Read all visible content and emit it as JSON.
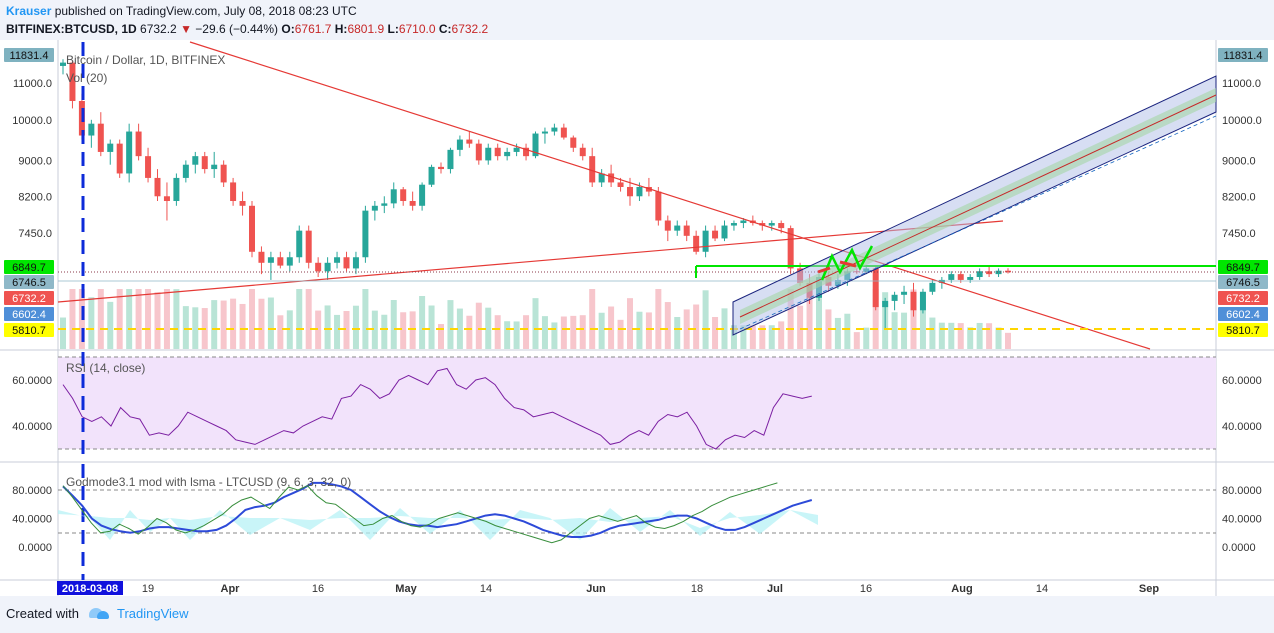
{
  "header": {
    "author": "Krauser",
    "published_text": "published on TradingView.com, July 08, 2018 08:23 UTC",
    "symbol": "BITFINEX:BTCUSD, 1D",
    "last": "6732.2",
    "change": "−29.6 (−0.44%)",
    "o_label": "O:",
    "o": "6761.7",
    "h_label": "H:",
    "h": "6801.9",
    "l_label": "L:",
    "l": "6710.0",
    "c_label": "C:",
    "c": "6732.2"
  },
  "panes": {
    "main_title": "Bitcoin / Dollar, 1D, BITFINEX",
    "vol_title": "Vol (20)",
    "rsi_title": "RSI (14, close)",
    "god_title": "Godmode3.1 mod with lsma - LTCUSD (9, 6, 3, 32, 0)"
  },
  "footer": {
    "created_with": "Created with",
    "brand": "TradingView"
  },
  "chart_data": [
    {
      "type": "candlestick",
      "title": "Bitcoin / Dollar, 1D, BITFINEX",
      "x_ticks": [
        "2018-03-08",
        "19",
        "Apr",
        "16",
        "May",
        "14",
        "Jun",
        "18",
        "Jul",
        "16",
        "Aug",
        "14",
        "Sep"
      ],
      "y_ticks": [
        11000.0,
        10000.0,
        9000.0,
        8200.0,
        7450.0
      ],
      "scale": "log",
      "price_markers": [
        {
          "label": "11831.4",
          "color": "#7fb2c0"
        },
        {
          "label": "6849.7",
          "color": "#00e600"
        },
        {
          "label": "6746.5",
          "color": "#8fb8c8"
        },
        {
          "label": "6732.2",
          "color": "#ef5350"
        },
        {
          "label": "6602.4",
          "color": "#4f8fd8"
        },
        {
          "label": "5810.7",
          "color": "#ffff00"
        }
      ],
      "ohlc_approx": [
        [
          11500,
          11700,
          11250,
          11600
        ],
        [
          11600,
          11650,
          10300,
          10500
        ],
        [
          10500,
          10700,
          9500,
          9600
        ],
        [
          9600,
          10000,
          9300,
          9900
        ],
        [
          9900,
          10200,
          9100,
          9200
        ],
        [
          9200,
          9500,
          8900,
          9400
        ],
        [
          9400,
          9500,
          8600,
          8700
        ],
        [
          8700,
          9900,
          8500,
          9700
        ],
        [
          9700,
          9900,
          9000,
          9100
        ],
        [
          9100,
          9300,
          8500,
          8600
        ],
        [
          8600,
          8800,
          8100,
          8200
        ],
        [
          8200,
          8500,
          7700,
          8100
        ],
        [
          8100,
          8700,
          8000,
          8600
        ],
        [
          8600,
          9000,
          8500,
          8900
        ],
        [
          8900,
          9200,
          8700,
          9100
        ],
        [
          9100,
          9200,
          8700,
          8800
        ],
        [
          8800,
          9200,
          8600,
          8900
        ],
        [
          8900,
          9000,
          8400,
          8500
        ],
        [
          8500,
          8600,
          8000,
          8100
        ],
        [
          8100,
          8300,
          7800,
          8000
        ],
        [
          8000,
          8100,
          7000,
          7100
        ],
        [
          7100,
          7200,
          6700,
          6900
        ],
        [
          6900,
          7100,
          6600,
          7000
        ],
        [
          7000,
          7100,
          6800,
          6850
        ],
        [
          6850,
          7100,
          6750,
          7000
        ],
        [
          7000,
          7600,
          6900,
          7500
        ],
        [
          7500,
          7600,
          6800,
          6900
        ],
        [
          6900,
          7000,
          6650,
          6750
        ],
        [
          6750,
          7000,
          6600,
          6900
        ],
        [
          6900,
          7100,
          6800,
          7000
        ],
        [
          7000,
          7100,
          6750,
          6800
        ],
        [
          6800,
          7100,
          6700,
          7000
        ],
        [
          7000,
          8000,
          6900,
          7900
        ],
        [
          7900,
          8100,
          7700,
          8000
        ],
        [
          8000,
          8200,
          7850,
          8050
        ],
        [
          8050,
          8500,
          7950,
          8350
        ],
        [
          8350,
          8400,
          8000,
          8100
        ],
        [
          8100,
          8300,
          7900,
          8000
        ],
        [
          8000,
          8500,
          7900,
          8450
        ],
        [
          8450,
          8900,
          8400,
          8850
        ],
        [
          8850,
          8950,
          8700,
          8800
        ],
        [
          8800,
          9300,
          8700,
          9250
        ],
        [
          9250,
          9600,
          9100,
          9500
        ],
        [
          9500,
          9700,
          9300,
          9400
        ],
        [
          9400,
          9500,
          8900,
          9000
        ],
        [
          9000,
          9400,
          8900,
          9300
        ],
        [
          9300,
          9400,
          9000,
          9100
        ],
        [
          9100,
          9300,
          9000,
          9200
        ],
        [
          9200,
          9400,
          9100,
          9300
        ],
        [
          9300,
          9400,
          9000,
          9100
        ],
        [
          9100,
          9700,
          9050,
          9650
        ],
        [
          9650,
          9800,
          9400,
          9700
        ],
        [
          9700,
          9900,
          9600,
          9800
        ],
        [
          9800,
          9900,
          9500,
          9550
        ],
        [
          9550,
          9600,
          9200,
          9300
        ],
        [
          9300,
          9400,
          9000,
          9100
        ],
        [
          9100,
          9300,
          8400,
          8500
        ],
        [
          8500,
          8800,
          8400,
          8700
        ],
        [
          8700,
          8900,
          8400,
          8500
        ],
        [
          8500,
          8600,
          8300,
          8400
        ],
        [
          8400,
          8600,
          8000,
          8200
        ],
        [
          8200,
          8500,
          8100,
          8400
        ],
        [
          8400,
          8600,
          8200,
          8300
        ],
        [
          8300,
          8400,
          7600,
          7700
        ],
        [
          7700,
          7800,
          7300,
          7500
        ],
        [
          7500,
          7700,
          7400,
          7600
        ],
        [
          7600,
          7700,
          7300,
          7400
        ],
        [
          7400,
          7500,
          7050,
          7100
        ],
        [
          7100,
          7600,
          7000,
          7500
        ],
        [
          7500,
          7600,
          7300,
          7350
        ],
        [
          7350,
          7700,
          7300,
          7600
        ],
        [
          7600,
          7700,
          7500,
          7650
        ],
        [
          7650,
          7750,
          7550,
          7700
        ],
        [
          7700,
          7800,
          7600,
          7650
        ],
        [
          7650,
          7700,
          7500,
          7600
        ],
        [
          7600,
          7700,
          7500,
          7650
        ],
        [
          7650,
          7700,
          7450,
          7550
        ],
        [
          7550,
          7600,
          6700,
          6800
        ],
        [
          6800,
          6900,
          6500,
          6550
        ],
        [
          6550,
          6700,
          6200,
          6300
        ],
        [
          6300,
          6700,
          6250,
          6650
        ],
        [
          6650,
          6750,
          6400,
          6500
        ],
        [
          6500,
          6700,
          6450,
          6600
        ],
        [
          6600,
          6800,
          6500,
          6750
        ],
        [
          6750,
          6800,
          6700,
          6740
        ],
        [
          6740,
          6850,
          6700,
          6800
        ],
        [
          6800,
          6850,
          6100,
          6150
        ],
        [
          6150,
          6300,
          5800,
          6250
        ],
        [
          6250,
          6400,
          6100,
          6350
        ],
        [
          6350,
          6500,
          6200,
          6400
        ],
        [
          6400,
          6550,
          6000,
          6100
        ],
        [
          6100,
          6450,
          6050,
          6400
        ],
        [
          6400,
          6600,
          6350,
          6550
        ],
        [
          6550,
          6650,
          6450,
          6600
        ],
        [
          6600,
          6750,
          6550,
          6700
        ],
        [
          6700,
          6750,
          6550,
          6600
        ],
        [
          6600,
          6700,
          6550,
          6650
        ],
        [
          6650,
          6800,
          6600,
          6750
        ],
        [
          6750,
          6850,
          6650,
          6700
        ],
        [
          6700,
          6800,
          6650,
          6760
        ],
        [
          6760,
          6802,
          6710,
          6732
        ]
      ]
    },
    {
      "type": "line",
      "title": "RSI (14, close)",
      "y_ticks": [
        60.0,
        40.0
      ],
      "values": [
        58,
        52,
        44,
        42,
        44,
        40,
        48,
        44,
        43,
        36,
        37,
        36,
        40,
        46,
        44,
        42,
        40,
        38,
        34,
        33,
        32,
        34,
        36,
        38,
        37,
        40,
        42,
        44,
        43,
        52,
        53,
        58,
        56,
        52,
        54,
        60,
        62,
        60,
        58,
        64,
        65,
        58,
        56,
        60,
        61,
        58,
        52,
        48,
        47,
        44,
        45,
        46,
        44,
        42,
        40,
        38,
        36,
        32,
        33,
        36,
        38,
        36,
        42,
        45,
        44,
        46,
        40,
        32,
        30,
        34,
        36,
        35,
        38,
        36,
        48,
        54,
        53,
        52,
        53
      ]
    },
    {
      "type": "line",
      "title": "Godmode3.1 mod with lsma - LTCUSD (9, 6, 3, 32, 0)",
      "y_ticks": [
        80.0,
        40.0,
        0.0
      ],
      "series": [
        {
          "values": [
            85,
            72,
            58,
            40,
            30,
            25,
            22,
            20,
            22,
            26,
            28,
            28,
            26,
            24,
            22,
            22,
            24,
            30,
            40,
            52,
            56,
            58,
            62,
            70,
            76,
            82,
            90,
            90,
            88,
            85,
            80,
            70,
            60,
            50,
            42,
            36,
            32,
            30,
            30,
            28,
            30,
            32,
            36,
            40,
            44,
            46,
            44,
            40,
            36,
            30,
            24,
            20,
            16,
            14,
            14,
            16,
            20,
            26,
            30,
            32,
            34,
            36,
            38,
            42,
            44,
            44,
            40,
            34,
            28,
            24,
            24,
            28,
            34,
            40,
            46,
            52,
            58,
            62,
            66
          ]
        },
        {
          "values": [
            86,
            70,
            52,
            34,
            20,
            22,
            32,
            26,
            18,
            28,
            40,
            34,
            24,
            20,
            24,
            30,
            38,
            46,
            58,
            66,
            70,
            62,
            54,
            70,
            84,
            80,
            86,
            72,
            62,
            60,
            50,
            40,
            30,
            32,
            40,
            44,
            36,
            30,
            28,
            32,
            40,
            44,
            48,
            44,
            40,
            36,
            30,
            26,
            22,
            18,
            14,
            10,
            6,
            10,
            20,
            30,
            40,
            44,
            40,
            36,
            40,
            44,
            34,
            28,
            26,
            30,
            36,
            44,
            50,
            58,
            64,
            70,
            74,
            78,
            82,
            86,
            90
          ]
        }
      ]
    }
  ]
}
